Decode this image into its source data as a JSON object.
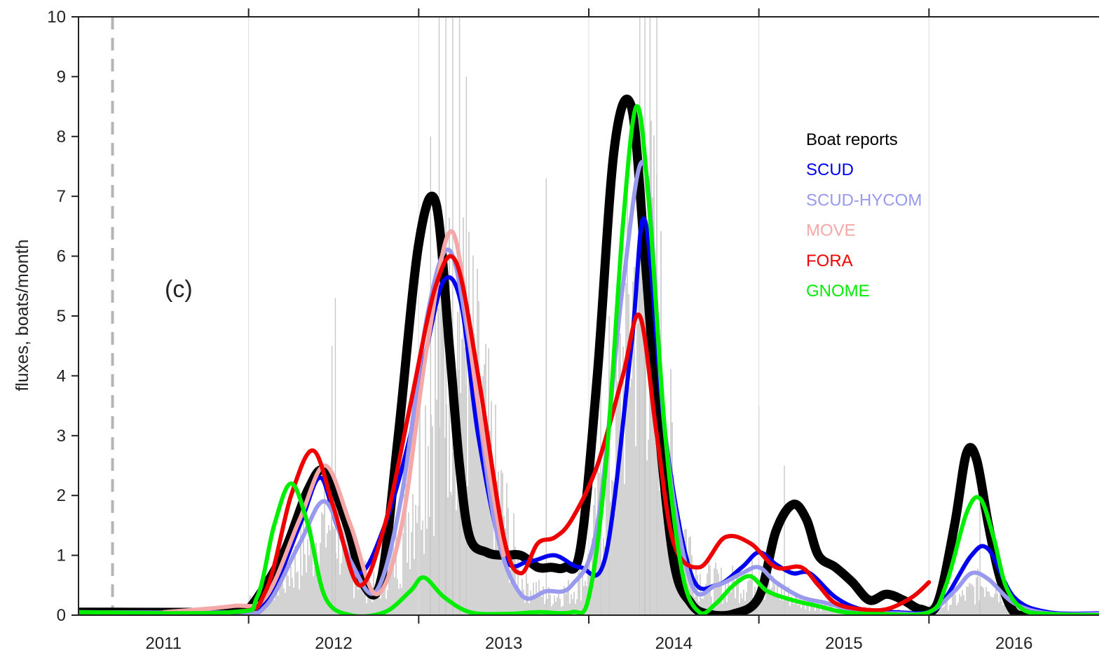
{
  "chart_data": {
    "type": "line",
    "panel_label": "(c)",
    "ylabel": "fluxes, boats/month",
    "xlabel": "",
    "xlim": [
      2011.0,
      2017.0
    ],
    "ylim": [
      0,
      10
    ],
    "yticks": [
      0,
      1,
      2,
      3,
      4,
      5,
      6,
      7,
      8,
      9,
      10
    ],
    "xticks": [
      {
        "label": "2011",
        "value": 2011.5
      },
      {
        "label": "2012",
        "value": 2012.5
      },
      {
        "label": "2013",
        "value": 2013.5
      },
      {
        "label": "2014",
        "value": 2014.5
      },
      {
        "label": "2015",
        "value": 2015.5
      },
      {
        "label": "2016",
        "value": 2016.5
      }
    ],
    "year_boundaries": [
      2012.0,
      2013.0,
      2014.0,
      2015.0,
      2016.0
    ],
    "reference_line_x": 2011.2,
    "legend_position": "top-right",
    "background_bars": {
      "color": "#c8c8c8",
      "envelope": [
        [
          2011.95,
          0
        ],
        [
          2012.0,
          0.2
        ],
        [
          2012.2,
          0.6
        ],
        [
          2012.4,
          1.3
        ],
        [
          2012.5,
          1.6
        ],
        [
          2012.6,
          0.8
        ],
        [
          2012.75,
          0.4
        ],
        [
          2012.9,
          1.2
        ],
        [
          2013.0,
          2.5
        ],
        [
          2013.1,
          3.8
        ],
        [
          2013.2,
          4.6
        ],
        [
          2013.3,
          4.2
        ],
        [
          2013.45,
          2.2
        ],
        [
          2013.6,
          0.6
        ],
        [
          2013.75,
          0.3
        ],
        [
          2013.9,
          0.4
        ],
        [
          2014.0,
          0.8
        ],
        [
          2014.15,
          3.0
        ],
        [
          2014.3,
          6.0
        ],
        [
          2014.4,
          5.0
        ],
        [
          2014.5,
          2.0
        ],
        [
          2014.65,
          0.6
        ],
        [
          2014.8,
          0.5
        ],
        [
          2015.0,
          0.6
        ],
        [
          2015.1,
          0.4
        ],
        [
          2015.3,
          0.2
        ],
        [
          2015.5,
          0.1
        ],
        [
          2015.7,
          0.08
        ],
        [
          2016.0,
          0.1
        ],
        [
          2016.2,
          0.3
        ],
        [
          2016.35,
          0.6
        ],
        [
          2016.5,
          0.2
        ],
        [
          2016.7,
          0.02
        ],
        [
          2017.0,
          0
        ]
      ],
      "spikes": [
        [
          2012.49,
          4.5
        ],
        [
          2012.51,
          5.3
        ],
        [
          2013.07,
          8.0
        ],
        [
          2013.12,
          10.0
        ],
        [
          2013.16,
          10.0
        ],
        [
          2013.2,
          10.0
        ],
        [
          2013.24,
          10.0
        ],
        [
          2013.28,
          9.0
        ],
        [
          2013.75,
          7.3
        ],
        [
          2014.07,
          4.5
        ],
        [
          2014.12,
          5.0
        ],
        [
          2014.3,
          10.0
        ],
        [
          2014.33,
          10.0
        ],
        [
          2014.36,
          10.0
        ],
        [
          2014.4,
          10.0
        ],
        [
          2015.0,
          3.5
        ],
        [
          2015.15,
          2.5
        ],
        [
          2016.3,
          2.0
        ]
      ]
    },
    "series": [
      {
        "name": "Boat reports",
        "color": "#000000",
        "x": [
          2011.0,
          2011.9,
          2012.0,
          2012.2,
          2012.35,
          2012.45,
          2012.58,
          2012.68,
          2012.78,
          2012.88,
          2013.0,
          2013.1,
          2013.18,
          2013.24,
          2013.3,
          2013.4,
          2013.5,
          2013.6,
          2013.7,
          2013.78,
          2013.86,
          2013.95,
          2014.05,
          2014.15,
          2014.25,
          2014.33,
          2014.4,
          2014.5,
          2014.6,
          2014.7,
          2014.85,
          2015.0,
          2015.1,
          2015.2,
          2015.28,
          2015.35,
          2015.45,
          2015.55,
          2015.65,
          2015.75,
          2015.85,
          2015.95,
          2016.05,
          2016.15,
          2016.22,
          2016.28,
          2016.35,
          2016.42,
          2016.5,
          2016.6
        ],
        "y": [
          0.05,
          0.05,
          0.1,
          1.0,
          2.1,
          2.4,
          1.5,
          0.5,
          0.6,
          3.0,
          6.2,
          6.9,
          4.5,
          2.5,
          1.3,
          1.05,
          1.0,
          1.0,
          0.8,
          0.8,
          0.8,
          1.1,
          4.0,
          7.8,
          8.5,
          6.0,
          3.5,
          0.9,
          0.2,
          0.02,
          0.02,
          0.3,
          1.4,
          1.85,
          1.6,
          1.0,
          0.8,
          0.55,
          0.25,
          0.35,
          0.25,
          0.1,
          0.2,
          1.5,
          2.7,
          2.6,
          1.5,
          0.6,
          0.05,
          0.0
        ]
      },
      {
        "name": "SCUD",
        "color": "#0000ee",
        "x": [
          2011.0,
          2011.9,
          2012.1,
          2012.3,
          2012.42,
          2012.52,
          2012.65,
          2012.8,
          2012.95,
          2013.05,
          2013.15,
          2013.25,
          2013.35,
          2013.5,
          2013.65,
          2013.8,
          2013.95,
          2014.1,
          2014.25,
          2014.33,
          2014.45,
          2014.6,
          2014.75,
          2014.9,
          2015.0,
          2015.1,
          2015.2,
          2015.3,
          2015.45,
          2015.6,
          2015.8,
          2016.0,
          2016.1,
          2016.25,
          2016.35,
          2016.5,
          2016.7,
          2017.0
        ],
        "y": [
          0.05,
          0.05,
          0.2,
          1.5,
          2.3,
          1.5,
          0.7,
          1.5,
          3.0,
          4.5,
          5.6,
          5.2,
          3.0,
          1.0,
          0.9,
          1.0,
          0.8,
          1.0,
          4.5,
          6.6,
          3.0,
          0.7,
          0.5,
          0.8,
          1.05,
          0.85,
          0.7,
          0.7,
          0.3,
          0.1,
          0.05,
          0.05,
          0.3,
          1.0,
          1.1,
          0.3,
          0.05,
          0.03
        ]
      },
      {
        "name": "SCUD-HYCOM",
        "color": "#9999ee",
        "x": [
          2011.0,
          2011.9,
          2012.1,
          2012.3,
          2012.45,
          2012.6,
          2012.75,
          2012.9,
          2013.05,
          2013.18,
          2013.3,
          2013.45,
          2013.6,
          2013.75,
          2013.9,
          2014.05,
          2014.2,
          2014.33,
          2014.45,
          2014.6,
          2014.75,
          2014.9,
          2015.0,
          2015.1,
          2015.25,
          2015.4,
          2015.6,
          2015.8,
          2016.0,
          2016.15,
          2016.25,
          2016.35,
          2016.5,
          2016.7,
          2017.0
        ],
        "y": [
          0.05,
          0.05,
          0.15,
          1.2,
          1.9,
          0.9,
          0.4,
          2.0,
          5.0,
          6.1,
          4.5,
          1.5,
          0.35,
          0.4,
          0.5,
          1.5,
          5.5,
          7.5,
          3.0,
          0.55,
          0.5,
          0.7,
          0.8,
          0.55,
          0.3,
          0.2,
          0.05,
          0.03,
          0.05,
          0.4,
          0.7,
          0.6,
          0.2,
          0.03,
          0.02
        ]
      },
      {
        "name": "MOVE",
        "color": "#f4a8a8",
        "x": [
          2011.5,
          2011.9,
          2012.1,
          2012.3,
          2012.45,
          2012.6,
          2012.75,
          2012.9,
          2013.05,
          2013.2,
          2013.35,
          2013.5
        ],
        "y": [
          0.05,
          0.15,
          0.3,
          1.6,
          2.5,
          1.5,
          0.35,
          1.5,
          4.5,
          6.4,
          3.5,
          1.0
        ]
      },
      {
        "name": "FORA",
        "color": "#ee0000",
        "x": [
          2011.0,
          2011.9,
          2012.1,
          2012.25,
          2012.38,
          2012.5,
          2012.65,
          2012.8,
          2012.95,
          2013.1,
          2013.22,
          2013.35,
          2013.5,
          2013.6,
          2013.7,
          2013.8,
          2013.9,
          2014.05,
          2014.2,
          2014.3,
          2014.4,
          2014.5,
          2014.65,
          2014.8,
          2014.95,
          2015.1,
          2015.25,
          2015.35,
          2015.45,
          2015.6,
          2015.75,
          2015.9,
          2016.0
        ],
        "y": [
          0.05,
          0.05,
          0.4,
          2.0,
          2.75,
          1.8,
          0.5,
          1.5,
          3.5,
          5.5,
          5.9,
          4.0,
          1.3,
          0.7,
          1.2,
          1.3,
          1.6,
          2.5,
          4.0,
          5.0,
          3.0,
          1.2,
          0.8,
          1.3,
          1.2,
          0.8,
          0.8,
          0.5,
          0.2,
          0.1,
          0.1,
          0.3,
          0.55
        ]
      },
      {
        "name": "GNOME",
        "color": "#00ee00",
        "x": [
          2011.0,
          2011.9,
          2012.05,
          2012.15,
          2012.25,
          2012.35,
          2012.45,
          2012.6,
          2012.8,
          2012.95,
          2013.03,
          2013.15,
          2013.3,
          2013.5,
          2013.7,
          2013.9,
          2014.0,
          2014.1,
          2014.2,
          2014.28,
          2014.35,
          2014.45,
          2014.55,
          2014.65,
          2014.75,
          2014.85,
          2014.95,
          2015.05,
          2015.2,
          2015.35,
          2015.5,
          2015.7,
          2016.0,
          2016.1,
          2016.22,
          2016.3,
          2016.38,
          2016.45,
          2016.55,
          2016.7,
          2017.0
        ],
        "y": [
          0.05,
          0.05,
          0.3,
          1.5,
          2.2,
          1.5,
          0.3,
          0.0,
          0.05,
          0.4,
          0.63,
          0.3,
          0.05,
          0.02,
          0.05,
          0.05,
          0.3,
          2.5,
          6.5,
          8.5,
          7.0,
          3.0,
          0.7,
          0.05,
          0.2,
          0.5,
          0.65,
          0.4,
          0.25,
          0.15,
          0.05,
          0.02,
          0.05,
          0.5,
          1.7,
          1.95,
          1.3,
          0.5,
          0.1,
          0.02,
          0.0
        ]
      }
    ]
  }
}
